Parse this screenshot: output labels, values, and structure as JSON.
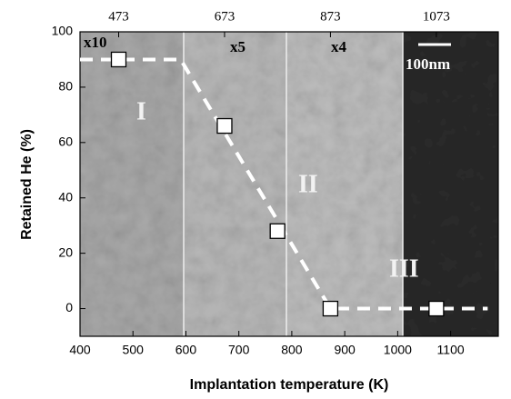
{
  "chart_data": {
    "type": "scatter",
    "xlabel": "Implantation temperature (K)",
    "ylabel": "Retained He (%)",
    "x": [
      473,
      673,
      773,
      873,
      1073
    ],
    "values": [
      90,
      66,
      28,
      0,
      0
    ],
    "trend": {
      "x": [
        400,
        590,
        873,
        1170
      ],
      "values": [
        90,
        90,
        0,
        0
      ]
    },
    "xlim": [
      400,
      1190
    ],
    "ylim": [
      -10,
      100
    ],
    "xticks": [
      400,
      500,
      600,
      700,
      800,
      900,
      1000,
      1100
    ],
    "yticks": [
      0,
      20,
      40,
      60,
      80,
      100
    ],
    "x2ticks": [
      473,
      673,
      873,
      1073
    ],
    "annotations": [
      "x10",
      "x5",
      "x4",
      "I",
      "II",
      "III",
      "100nm"
    ]
  }
}
